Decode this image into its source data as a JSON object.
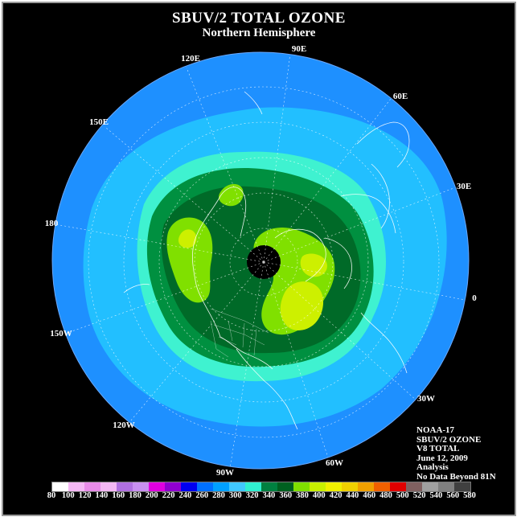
{
  "header": {
    "title": "SBUV/2 TOTAL OZONE",
    "subtitle": "Northern Hemisphere"
  },
  "longitude_labels": [
    "90E",
    "60E",
    "30E",
    "0",
    "30W",
    "60W",
    "90W",
    "120W",
    "150W",
    "180",
    "150E",
    "120E"
  ],
  "info": {
    "satellite": "NOAA-17",
    "product": "SBUV/2 OZONE",
    "version": "V8 TOTAL",
    "date": "June 12, 2009",
    "type": "Analysis",
    "note": "No Data Beyond 81N"
  },
  "legend": {
    "ticks": [
      "80",
      "100",
      "120",
      "140",
      "160",
      "180",
      "200",
      "220",
      "240",
      "260",
      "280",
      "300",
      "320",
      "340",
      "360",
      "380",
      "400",
      "420",
      "440",
      "460",
      "480",
      "500",
      "520",
      "540",
      "560",
      "580"
    ],
    "colors": [
      "#ffffff",
      "#f4b8f4",
      "#e88ce8",
      "#f4b8f4",
      "#b070e0",
      "#c890f0",
      "#e000e0",
      "#9000d0",
      "#0000f0",
      "#0070ff",
      "#00a0ff",
      "#40c8ff",
      "#30f0d0",
      "#008040",
      "#006020",
      "#80e000",
      "#c8f000",
      "#f0f000",
      "#f0d000",
      "#f0a000",
      "#f06000",
      "#e00000",
      "#806060",
      "#a0a0a0",
      "#808080",
      "#404040"
    ]
  },
  "map_colors": {
    "band_260_280": "#1e90ff",
    "band_280_300": "#22bfff",
    "band_300_320": "#3ff2d0",
    "band_320_340": "#009040",
    "band_340_360": "#006a28",
    "band_360_380": "#80e000",
    "band_380_400": "#cdf000",
    "no_data": "#000000"
  }
}
